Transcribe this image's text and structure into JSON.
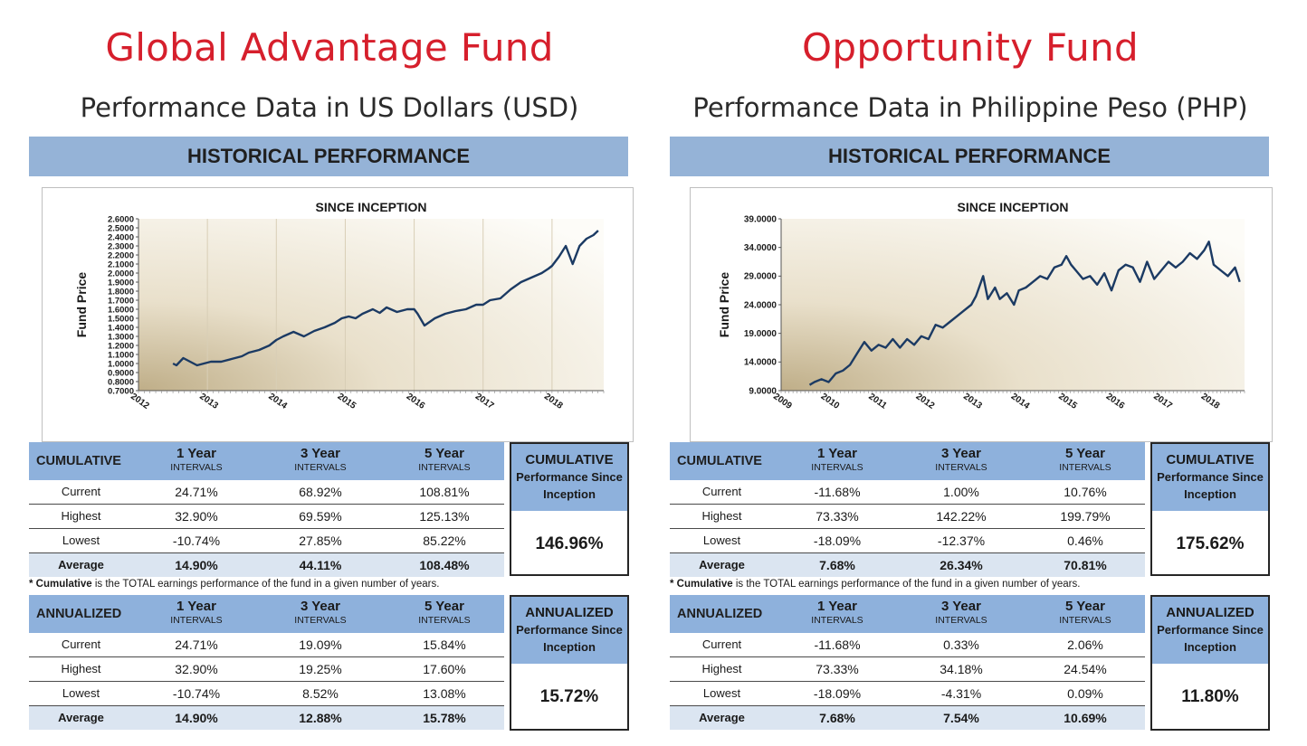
{
  "funds": [
    {
      "title": "Global Advantage Fund",
      "subtitle": "Performance Data in US Dollars (USD)",
      "section": "HISTORICAL  PERFORMANCE",
      "cumulative": {
        "label": "CUMULATIVE",
        "columns": [
          {
            "year": "1 Year",
            "sub": "INTERVALS"
          },
          {
            "year": "3 Year",
            "sub": "INTERVALS"
          },
          {
            "year": "5 Year",
            "sub": "INTERVALS"
          }
        ],
        "rows": [
          {
            "label": "Current",
            "values": [
              "24.71%",
              "68.92%",
              "108.81%"
            ]
          },
          {
            "label": "Highest",
            "values": [
              "32.90%",
              "69.59%",
              "125.13%"
            ]
          },
          {
            "label": "Lowest",
            "values": [
              "-10.74%",
              "27.85%",
              "85.22%"
            ]
          },
          {
            "label": "Average",
            "values": [
              "14.90%",
              "44.11%",
              "108.48%"
            ]
          }
        ],
        "since_title": "CUMULATIVE",
        "since_sub1": "Performance Since",
        "since_sub2": "Inception",
        "since_value": "146.96%"
      },
      "note_bold": "* Cumulative",
      "note_rest": "  is the TOTAL earnings performance of the fund in a given number of years.",
      "annualized": {
        "label": "ANNUALIZED",
        "columns": [
          {
            "year": "1 Year",
            "sub": "INTERVALS"
          },
          {
            "year": "3 Year",
            "sub": "INTERVALS"
          },
          {
            "year": "5 Year",
            "sub": "INTERVALS"
          }
        ],
        "rows": [
          {
            "label": "Current",
            "values": [
              "24.71%",
              "19.09%",
              "15.84%"
            ]
          },
          {
            "label": "Highest",
            "values": [
              "32.90%",
              "19.25%",
              "17.60%"
            ]
          },
          {
            "label": "Lowest",
            "values": [
              "-10.74%",
              "8.52%",
              "13.08%"
            ]
          },
          {
            "label": "Average",
            "values": [
              "14.90%",
              "12.88%",
              "15.78%"
            ]
          }
        ],
        "since_title": "ANNUALIZED",
        "since_sub1": "Performance Since",
        "since_sub2": "Inception",
        "since_value": "15.72%"
      }
    },
    {
      "title": "Opportunity Fund",
      "subtitle": "Performance Data in Philippine Peso (PHP)",
      "section": "HISTORICAL  PERFORMANCE",
      "cumulative": {
        "label": "CUMULATIVE",
        "columns": [
          {
            "year": "1 Year",
            "sub": "INTERVALS"
          },
          {
            "year": "3 Year",
            "sub": "INTERVALS"
          },
          {
            "year": "5 Year",
            "sub": "INTERVALS"
          }
        ],
        "rows": [
          {
            "label": "Current",
            "values": [
              "-11.68%",
              "1.00%",
              "10.76%"
            ]
          },
          {
            "label": "Highest",
            "values": [
              "73.33%",
              "142.22%",
              "199.79%"
            ]
          },
          {
            "label": "Lowest",
            "values": [
              "-18.09%",
              "-12.37%",
              "0.46%"
            ]
          },
          {
            "label": "Average",
            "values": [
              "7.68%",
              "26.34%",
              "70.81%"
            ]
          }
        ],
        "since_title": "CUMULATIVE",
        "since_sub1": "Performance Since",
        "since_sub2": "Inception",
        "since_value": "175.62%"
      },
      "note_bold": "* Cumulative",
      "note_rest": "  is the TOTAL earnings performance of the fund in a given number of years.",
      "annualized": {
        "label": "ANNUALIZED",
        "columns": [
          {
            "year": "1 Year",
            "sub": "INTERVALS"
          },
          {
            "year": "3 Year",
            "sub": "INTERVALS"
          },
          {
            "year": "5 Year",
            "sub": "INTERVALS"
          }
        ],
        "rows": [
          {
            "label": "Current",
            "values": [
              "-11.68%",
              "0.33%",
              "2.06%"
            ]
          },
          {
            "label": "Highest",
            "values": [
              "73.33%",
              "34.18%",
              "24.54%"
            ]
          },
          {
            "label": "Lowest",
            "values": [
              "-18.09%",
              "-4.31%",
              "0.09%"
            ]
          },
          {
            "label": "Average",
            "values": [
              "7.68%",
              "7.54%",
              "10.69%"
            ]
          }
        ],
        "since_title": "ANNUALIZED",
        "since_sub1": "Performance Since",
        "since_sub2": "Inception",
        "since_value": "11.80%"
      }
    }
  ],
  "colors": {
    "title_red": "#d61f2c",
    "header_blue": "#95b3d7",
    "table_blue": "#8eb1dc",
    "line_navy": "#1b3a63",
    "average_row": "#dbe5f1"
  },
  "chart_data": [
    {
      "type": "line",
      "title": "SINCE INCEPTION",
      "ylabel": "Fund  Price",
      "xlabel": "",
      "ylim": [
        0.7,
        2.6
      ],
      "xlim": [
        2012,
        2018.75
      ],
      "ytick_labels": [
        "2.6000",
        "2.5000",
        "2.4000",
        "2.3000",
        "2.2000",
        "2.1000",
        "2.0000",
        "1.9000",
        "1.8000",
        "1.7000",
        "1.6000",
        "1.5000",
        "1.4000",
        "1.3000",
        "1.2000",
        "1.1000",
        "1.0000",
        "0.9000",
        "0.8000",
        "0.7000"
      ],
      "ytick_values": [
        2.6,
        2.5,
        2.4,
        2.3,
        2.2,
        2.1,
        2.0,
        1.9,
        1.8,
        1.7,
        1.6,
        1.5,
        1.4,
        1.3,
        1.2,
        1.1,
        1.0,
        0.9,
        0.8,
        0.7
      ],
      "xtick_labels": [
        "2012",
        "2013",
        "2014",
        "2015",
        "2016",
        "2017",
        "2018"
      ],
      "xtick_values": [
        2012,
        2013,
        2014,
        2015,
        2016,
        2017,
        2018
      ],
      "grid": true,
      "series": [
        {
          "x": [
            2012.5,
            2012.55,
            2012.65,
            2012.75,
            2012.85,
            2012.95,
            2013.05,
            2013.2,
            2013.35,
            2013.5,
            2013.6,
            2013.75,
            2013.9,
            2014.0,
            2014.1,
            2014.25,
            2014.4,
            2014.55,
            2014.7,
            2014.85,
            2014.95,
            2015.05,
            2015.15,
            2015.25,
            2015.4,
            2015.5,
            2015.6,
            2015.75,
            2015.9,
            2016.0,
            2016.05,
            2016.15,
            2016.3,
            2016.45,
            2016.6,
            2016.75,
            2016.9,
            2017.0,
            2017.1,
            2017.25,
            2017.4,
            2017.55,
            2017.7,
            2017.85,
            2017.95,
            2018.0,
            2018.1,
            2018.2,
            2018.3,
            2018.4,
            2018.5,
            2018.6,
            2018.67
          ],
          "y": [
            1.0,
            0.98,
            1.06,
            1.02,
            0.98,
            1.0,
            1.02,
            1.02,
            1.05,
            1.08,
            1.12,
            1.15,
            1.2,
            1.26,
            1.3,
            1.35,
            1.3,
            1.36,
            1.4,
            1.45,
            1.5,
            1.52,
            1.5,
            1.55,
            1.6,
            1.56,
            1.62,
            1.57,
            1.6,
            1.6,
            1.55,
            1.42,
            1.5,
            1.55,
            1.58,
            1.6,
            1.65,
            1.65,
            1.7,
            1.72,
            1.82,
            1.9,
            1.95,
            2.0,
            2.05,
            2.08,
            2.18,
            2.3,
            2.1,
            2.3,
            2.38,
            2.42,
            2.47
          ]
        }
      ]
    },
    {
      "type": "line",
      "title": "SINCE INCEPTION",
      "ylabel": "Fund  Price",
      "xlabel": "",
      "ylim": [
        9.0,
        39.0
      ],
      "xlim": [
        2009,
        2018.75
      ],
      "ytick_labels": [
        "39.0000",
        "34.0000",
        "29.0000",
        "24.0000",
        "19.0000",
        "14.0000",
        "9.0000"
      ],
      "ytick_values": [
        39,
        34,
        29,
        24,
        19,
        14,
        9
      ],
      "xtick_labels": [
        "2009",
        "2010",
        "2011",
        "2012",
        "2013",
        "2014",
        "2015",
        "2016",
        "2017",
        "2018"
      ],
      "xtick_values": [
        2009,
        2010,
        2011,
        2012,
        2013,
        2014,
        2015,
        2016,
        2017,
        2018
      ],
      "grid": false,
      "series": [
        {
          "x": [
            2009.6,
            2009.7,
            2009.85,
            2010.0,
            2010.15,
            2010.3,
            2010.45,
            2010.6,
            2010.75,
            2010.9,
            2011.05,
            2011.2,
            2011.35,
            2011.5,
            2011.65,
            2011.8,
            2011.95,
            2012.1,
            2012.25,
            2012.4,
            2012.55,
            2012.7,
            2012.85,
            2013.0,
            2013.1,
            2013.25,
            2013.35,
            2013.5,
            2013.6,
            2013.75,
            2013.9,
            2014.0,
            2014.15,
            2014.3,
            2014.45,
            2014.6,
            2014.75,
            2014.9,
            2015.0,
            2015.1,
            2015.2,
            2015.35,
            2015.5,
            2015.65,
            2015.8,
            2015.95,
            2016.1,
            2016.25,
            2016.4,
            2016.55,
            2016.7,
            2016.85,
            2017.0,
            2017.15,
            2017.3,
            2017.45,
            2017.6,
            2017.75,
            2017.9,
            2018.0,
            2018.1,
            2018.25,
            2018.4,
            2018.55,
            2018.65
          ],
          "y": [
            10.0,
            10.5,
            11.0,
            10.5,
            12.0,
            12.5,
            13.5,
            15.5,
            17.5,
            16.0,
            17.0,
            16.5,
            18.0,
            16.5,
            18.0,
            17.0,
            18.5,
            18.0,
            20.5,
            20.0,
            21.0,
            22.0,
            23.0,
            24.0,
            25.5,
            29.0,
            25.0,
            27.0,
            25.0,
            26.0,
            24.0,
            26.5,
            27.0,
            28.0,
            29.0,
            28.5,
            30.5,
            31.0,
            32.5,
            31.0,
            30.0,
            28.5,
            29.0,
            27.5,
            29.5,
            26.5,
            30.0,
            31.0,
            30.5,
            28.0,
            31.5,
            28.5,
            30.0,
            31.5,
            30.5,
            31.5,
            33.0,
            32.0,
            33.5,
            35.0,
            31.0,
            30.0,
            29.0,
            30.5,
            28.0
          ]
        }
      ]
    }
  ]
}
